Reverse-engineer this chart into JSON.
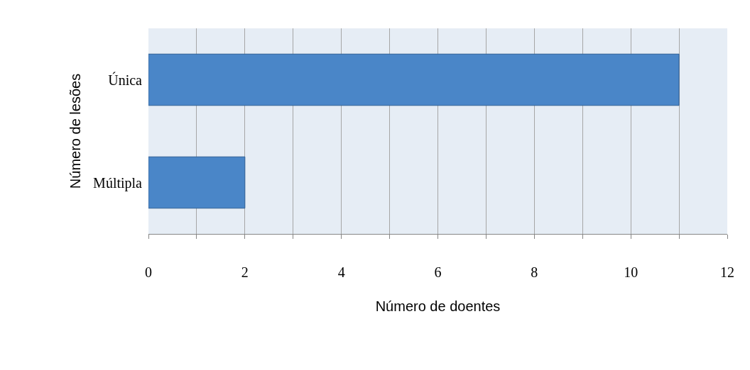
{
  "chart_data": {
    "type": "bar",
    "orientation": "horizontal",
    "categories": [
      "Única",
      "Múltipla"
    ],
    "values": [
      11,
      2
    ],
    "color": "#4a86c8",
    "xlabel": "Número de doentes",
    "ylabel": "Número de lesões",
    "xlim": [
      0,
      12
    ],
    "xticks": [
      0,
      {
        "value": 1,
        "label": null
      },
      2,
      {
        "value": 3,
        "label": null
      },
      4,
      {
        "value": 5,
        "label": null
      },
      6,
      {
        "value": 7,
        "label": null
      },
      8,
      {
        "value": 9,
        "label": null
      },
      10,
      {
        "value": 11,
        "label": null
      },
      12
    ],
    "grid": "x"
  }
}
